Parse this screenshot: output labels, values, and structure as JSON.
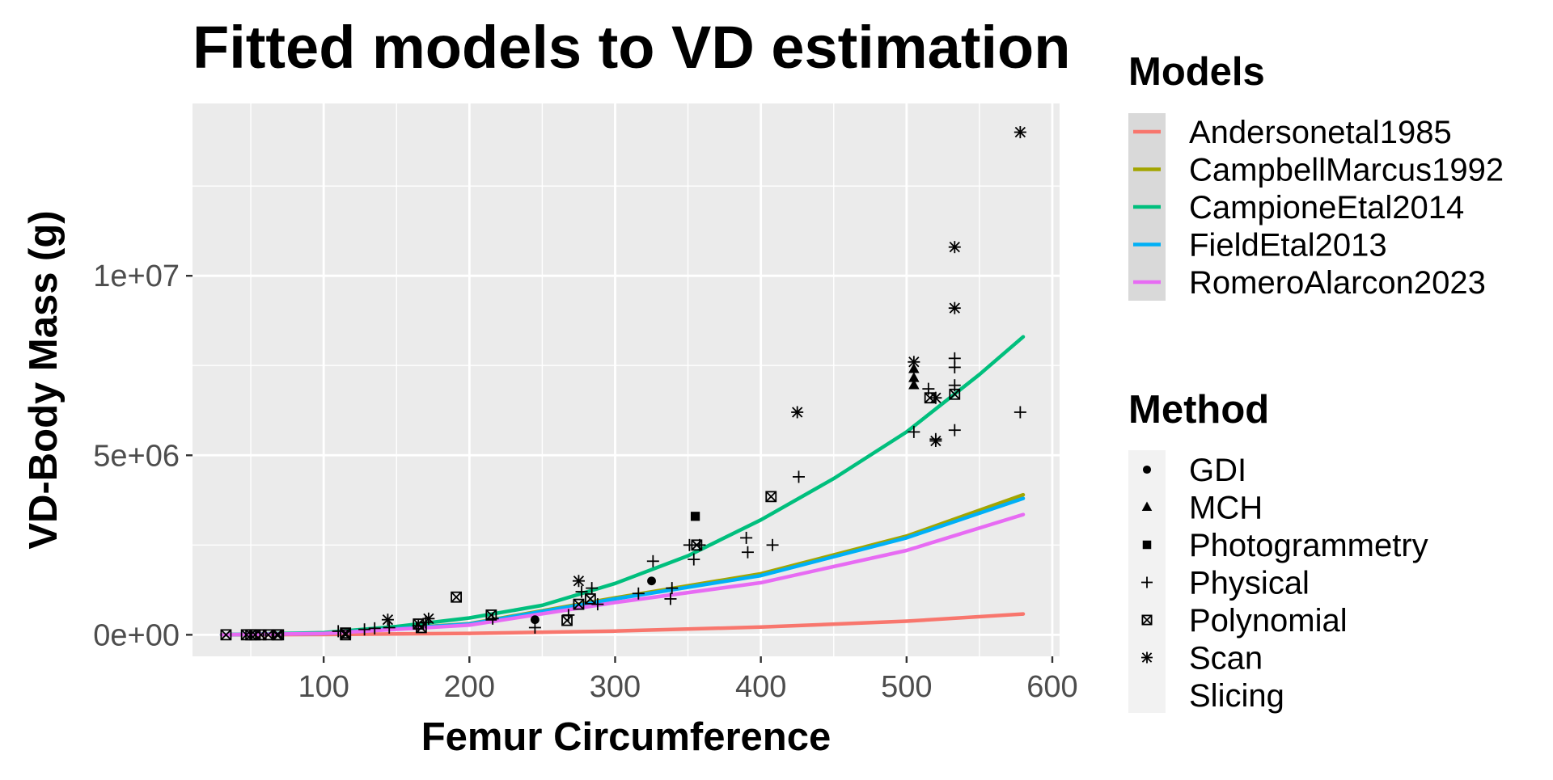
{
  "chart_data": {
    "type": "scatter",
    "title": "Fitted models to VD estimation",
    "xlabel": "Femur Circumference",
    "ylabel": "VD-Body Mass (g)",
    "xlim": [
      10,
      605
    ],
    "ylim": [
      -600000,
      14800000
    ],
    "x_ticks": [
      100,
      200,
      300,
      400,
      500,
      600
    ],
    "y_ticks": [
      {
        "value": 0,
        "label": "0e+00"
      },
      {
        "value": 5000000,
        "label": "5e+06"
      },
      {
        "value": 10000000,
        "label": "1e+07"
      }
    ],
    "grid": true,
    "legend_position": "right",
    "panel_background": "#ebebeb",
    "models_legend": {
      "title": "Models",
      "entries": [
        {
          "name": "Andersonetal1985",
          "color": "#f8766d"
        },
        {
          "name": "CampbellMarcus1992",
          "color": "#a3a500"
        },
        {
          "name": "CampioneEtal2014",
          "color": "#00bf7d"
        },
        {
          "name": "FieldEtal2013",
          "color": "#00b0f6"
        },
        {
          "name": "RomeroAlarcon2023",
          "color": "#e76bf3"
        }
      ]
    },
    "method_legend": {
      "title": "Method",
      "entries": [
        {
          "name": "GDI",
          "shape": "circle"
        },
        {
          "name": "MCH",
          "shape": "triangle"
        },
        {
          "name": "Photogrammetry",
          "shape": "square"
        },
        {
          "name": "Physical",
          "shape": "plus"
        },
        {
          "name": "Polynomial",
          "shape": "boxcross"
        },
        {
          "name": "Scan",
          "shape": "asterisk"
        },
        {
          "name": "Slicing",
          "shape": "none"
        }
      ]
    },
    "series": [
      {
        "name": "Andersonetal1985",
        "color": "#f8766d",
        "x": [
          30,
          100,
          200,
          300,
          400,
          500,
          580
        ],
        "y": [
          0,
          7000,
          40000,
          105000,
          215000,
          380000,
          580000
        ]
      },
      {
        "name": "CampbellMarcus1992",
        "color": "#a3a500",
        "x": [
          30,
          100,
          200,
          300,
          400,
          500,
          580
        ],
        "y": [
          1000,
          40000,
          310000,
          1030000,
          1700000,
          2750000,
          3900000
        ]
      },
      {
        "name": "CampioneEtal2014",
        "color": "#00bf7d",
        "x": [
          30,
          100,
          150,
          200,
          250,
          300,
          350,
          400,
          450,
          500,
          550,
          580
        ],
        "y": [
          2000,
          60000,
          230000,
          470000,
          820000,
          1430000,
          2200000,
          3200000,
          4350000,
          5650000,
          7250000,
          8300000
        ]
      },
      {
        "name": "FieldEtal2013",
        "color": "#00b0f6",
        "x": [
          30,
          100,
          200,
          300,
          400,
          500,
          580
        ],
        "y": [
          1000,
          38000,
          300000,
          1000000,
          1650000,
          2700000,
          3800000
        ]
      },
      {
        "name": "RomeroAlarcon2023",
        "color": "#e76bf3",
        "x": [
          30,
          100,
          200,
          300,
          400,
          500,
          580
        ],
        "y": [
          1000,
          35000,
          270000,
          900000,
          1450000,
          2350000,
          3350000
        ]
      }
    ],
    "points": [
      {
        "x": 33,
        "y": 0,
        "method": "Polynomial"
      },
      {
        "x": 47,
        "y": 0,
        "method": "Polynomial"
      },
      {
        "x": 50,
        "y": 0,
        "method": "Polynomial"
      },
      {
        "x": 53,
        "y": 0,
        "method": "Polynomial"
      },
      {
        "x": 57,
        "y": 0,
        "method": "Polynomial"
      },
      {
        "x": 62,
        "y": 0,
        "method": "Polynomial"
      },
      {
        "x": 68,
        "y": 0,
        "method": "Polynomial"
      },
      {
        "x": 69,
        "y": 0,
        "method": "Polynomial"
      },
      {
        "x": 110,
        "y": 100000,
        "method": "Physical"
      },
      {
        "x": 115,
        "y": 50000,
        "method": "Polynomial"
      },
      {
        "x": 115,
        "y": 0,
        "method": "Polynomial"
      },
      {
        "x": 128,
        "y": 150000,
        "method": "Physical"
      },
      {
        "x": 135,
        "y": 180000,
        "method": "Physical"
      },
      {
        "x": 144,
        "y": 420000,
        "method": "Scan"
      },
      {
        "x": 145,
        "y": 200000,
        "method": "Physical"
      },
      {
        "x": 165,
        "y": 250000,
        "method": "Physical"
      },
      {
        "x": 165,
        "y": 300000,
        "method": "Polynomial"
      },
      {
        "x": 167,
        "y": 200000,
        "method": "Polynomial"
      },
      {
        "x": 170,
        "y": 350000,
        "method": "Physical"
      },
      {
        "x": 172,
        "y": 450000,
        "method": "Scan"
      },
      {
        "x": 191,
        "y": 1050000,
        "method": "Polynomial"
      },
      {
        "x": 215,
        "y": 550000,
        "method": "Polynomial"
      },
      {
        "x": 216,
        "y": 450000,
        "method": "Physical"
      },
      {
        "x": 245,
        "y": 420000,
        "method": "GDI"
      },
      {
        "x": 245,
        "y": 200000,
        "method": "Physical"
      },
      {
        "x": 267,
        "y": 400000,
        "method": "Polynomial"
      },
      {
        "x": 268,
        "y": 550000,
        "method": "Physical"
      },
      {
        "x": 275,
        "y": 1500000,
        "method": "Scan"
      },
      {
        "x": 275,
        "y": 850000,
        "method": "Polynomial"
      },
      {
        "x": 277,
        "y": 1200000,
        "method": "Physical"
      },
      {
        "x": 283,
        "y": 1000000,
        "method": "Polynomial"
      },
      {
        "x": 284,
        "y": 1300000,
        "method": "Physical"
      },
      {
        "x": 288,
        "y": 850000,
        "method": "Physical"
      },
      {
        "x": 316,
        "y": 1150000,
        "method": "Physical"
      },
      {
        "x": 325,
        "y": 1500000,
        "method": "GDI"
      },
      {
        "x": 326,
        "y": 2050000,
        "method": "Physical"
      },
      {
        "x": 338,
        "y": 1000000,
        "method": "Physical"
      },
      {
        "x": 339,
        "y": 1300000,
        "method": "Physical"
      },
      {
        "x": 351,
        "y": 2500000,
        "method": "Physical"
      },
      {
        "x": 354,
        "y": 2100000,
        "method": "Physical"
      },
      {
        "x": 355,
        "y": 3300000,
        "method": "Photogrammetry"
      },
      {
        "x": 356,
        "y": 2500000,
        "method": "Polynomial"
      },
      {
        "x": 358,
        "y": 2500000,
        "method": "Physical"
      },
      {
        "x": 390,
        "y": 2700000,
        "method": "Physical"
      },
      {
        "x": 391,
        "y": 2300000,
        "method": "Physical"
      },
      {
        "x": 407,
        "y": 3850000,
        "method": "Polynomial"
      },
      {
        "x": 408,
        "y": 2500000,
        "method": "Physical"
      },
      {
        "x": 425,
        "y": 6200000,
        "method": "Scan"
      },
      {
        "x": 426,
        "y": 4400000,
        "method": "Physical"
      },
      {
        "x": 505,
        "y": 7600000,
        "method": "Scan"
      },
      {
        "x": 505,
        "y": 7400000,
        "method": "MCH"
      },
      {
        "x": 505,
        "y": 7150000,
        "method": "MCH"
      },
      {
        "x": 505,
        "y": 6950000,
        "method": "MCH"
      },
      {
        "x": 505,
        "y": 5650000,
        "method": "Physical"
      },
      {
        "x": 515,
        "y": 6850000,
        "method": "Physical"
      },
      {
        "x": 516,
        "y": 6600000,
        "method": "Polynomial"
      },
      {
        "x": 520,
        "y": 6600000,
        "method": "Scan"
      },
      {
        "x": 520,
        "y": 5400000,
        "method": "Scan"
      },
      {
        "x": 520,
        "y": 5450000,
        "method": "Physical"
      },
      {
        "x": 533,
        "y": 10800000,
        "method": "Scan"
      },
      {
        "x": 533,
        "y": 9100000,
        "method": "Scan"
      },
      {
        "x": 533,
        "y": 7700000,
        "method": "Physical"
      },
      {
        "x": 533,
        "y": 7450000,
        "method": "Physical"
      },
      {
        "x": 533,
        "y": 6700000,
        "method": "Polynomial"
      },
      {
        "x": 533,
        "y": 6950000,
        "method": "Physical"
      },
      {
        "x": 533,
        "y": 5700000,
        "method": "Physical"
      },
      {
        "x": 578,
        "y": 14000000,
        "method": "Scan"
      },
      {
        "x": 578,
        "y": 6200000,
        "method": "Physical"
      }
    ]
  }
}
